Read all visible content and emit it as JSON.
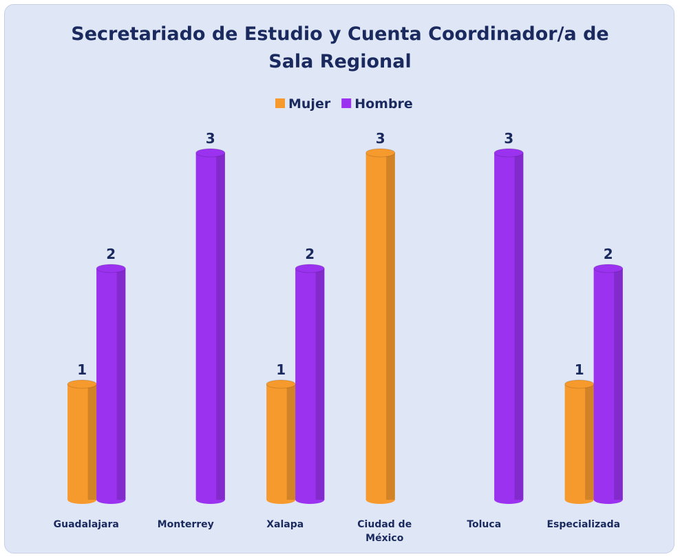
{
  "chart_data": {
    "type": "bar",
    "title": "Secretariado de Estudio y Cuenta Coordinador/a de Sala Regional",
    "categories": [
      "Guadalajara",
      "Monterrey",
      "Xalapa",
      "Ciudad de México",
      "Toluca",
      "Especializada"
    ],
    "series": [
      {
        "name": "Mujer",
        "color": "#f79a2e",
        "values": [
          1,
          null,
          1,
          3,
          null,
          1
        ]
      },
      {
        "name": "Hombre",
        "color": "#9a32f0",
        "values": [
          2,
          3,
          2,
          null,
          3,
          2
        ]
      }
    ],
    "ylim": [
      0,
      3
    ],
    "legend": "top"
  }
}
